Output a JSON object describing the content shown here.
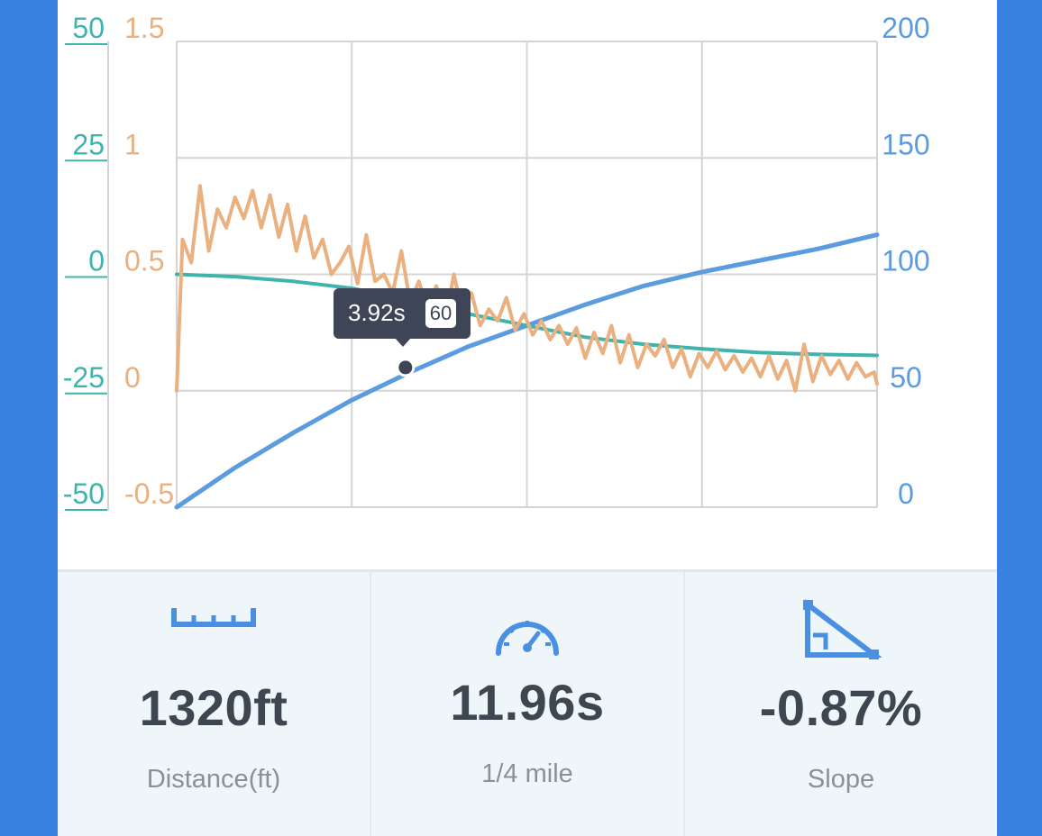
{
  "chart_data": {
    "type": "line",
    "title": "",
    "xlabel": "",
    "left_axis_1": {
      "ticks": [
        "50",
        "25",
        "0",
        "-25",
        "-50"
      ],
      "range": [
        -50,
        50
      ],
      "color": "#3fb4ac"
    },
    "left_axis_2": {
      "ticks": [
        "1.5",
        "1",
        "0.5",
        "0",
        "-0.5"
      ],
      "range": [
        -0.5,
        1.5
      ],
      "color": "#eab07f"
    },
    "right_axis": {
      "ticks": [
        "200",
        "150",
        "100",
        "50",
        "0"
      ],
      "range": [
        0,
        200
      ],
      "color": "#5b9be0"
    },
    "x_range": [
      0,
      12
    ],
    "series": [
      {
        "axis": "right",
        "color": "#5b9be0",
        "x": [
          0,
          1,
          2,
          3,
          4,
          5,
          6,
          7,
          8,
          9,
          10,
          11,
          12
        ],
        "values": [
          0,
          17,
          32,
          46,
          58,
          69,
          78,
          87,
          95,
          101,
          106,
          111,
          117
        ]
      },
      {
        "axis": "left_1",
        "color": "#3fb4ac",
        "x": [
          0,
          1,
          2,
          3,
          4,
          5,
          6,
          7,
          8,
          9,
          10,
          11,
          12
        ],
        "values": [
          0,
          -0.5,
          -1.5,
          -3,
          -5.5,
          -8.5,
          -11,
          -13.5,
          -15,
          -16,
          -16.8,
          -17.2,
          -17.4
        ]
      },
      {
        "axis": "left_2",
        "color": "#eab07f",
        "x": [
          0,
          0.1,
          0.25,
          0.4,
          0.55,
          0.7,
          0.85,
          1.0,
          1.15,
          1.3,
          1.45,
          1.6,
          1.75,
          1.9,
          2.05,
          2.2,
          2.35,
          2.5,
          2.65,
          2.8,
          2.95,
          3.1,
          3.25,
          3.4,
          3.55,
          3.7,
          3.85,
          4.0,
          4.15,
          4.3,
          4.45,
          4.6,
          4.75,
          4.9,
          5.05,
          5.2,
          5.35,
          5.5,
          5.65,
          5.8,
          5.95,
          6.1,
          6.25,
          6.4,
          6.55,
          6.7,
          6.85,
          7.0,
          7.15,
          7.3,
          7.45,
          7.6,
          7.75,
          7.9,
          8.05,
          8.2,
          8.35,
          8.5,
          8.65,
          8.8,
          8.95,
          9.1,
          9.25,
          9.4,
          9.55,
          9.7,
          9.85,
          10.0,
          10.15,
          10.3,
          10.45,
          10.6,
          10.75,
          10.9,
          11.05,
          11.2,
          11.35,
          11.5,
          11.65,
          11.8,
          11.95,
          12.0
        ],
        "values": [
          0.0,
          0.65,
          0.55,
          0.88,
          0.6,
          0.78,
          0.7,
          0.83,
          0.74,
          0.86,
          0.7,
          0.84,
          0.66,
          0.8,
          0.6,
          0.75,
          0.57,
          0.65,
          0.5,
          0.55,
          0.62,
          0.46,
          0.67,
          0.47,
          0.5,
          0.42,
          0.6,
          0.38,
          0.47,
          0.35,
          0.45,
          0.3,
          0.5,
          0.33,
          0.42,
          0.28,
          0.35,
          0.3,
          0.4,
          0.26,
          0.33,
          0.24,
          0.3,
          0.22,
          0.28,
          0.2,
          0.27,
          0.14,
          0.25,
          0.16,
          0.28,
          0.12,
          0.24,
          0.1,
          0.2,
          0.15,
          0.22,
          0.1,
          0.18,
          0.06,
          0.16,
          0.1,
          0.17,
          0.09,
          0.15,
          0.08,
          0.14,
          0.06,
          0.15,
          0.05,
          0.13,
          0.0,
          0.2,
          0.04,
          0.15,
          0.07,
          0.13,
          0.05,
          0.12,
          0.06,
          0.08,
          0.03
        ]
      }
    ],
    "marker": {
      "x": 3.92,
      "value": 60,
      "axis": "right"
    },
    "tooltip": {
      "time": "3.92s",
      "badge": "60"
    },
    "grid": true
  },
  "stats": {
    "distance": {
      "icon": "ruler-icon",
      "value": "1320ft",
      "label": "Distance(ft)"
    },
    "time": {
      "icon": "speedometer-icon",
      "value": "11.96s",
      "label": "1/4 mile"
    },
    "slope": {
      "icon": "slope-triangle-icon",
      "value": "-0.87%",
      "label": "Slope"
    }
  },
  "colors": {
    "icon": "#4a90e2",
    "background": "#3b82e0"
  }
}
